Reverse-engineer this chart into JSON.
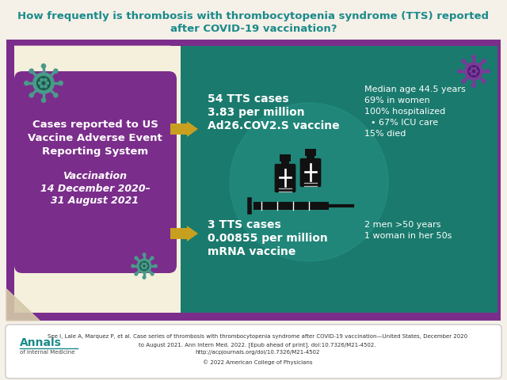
{
  "title_line1": "How frequently is thrombosis with thrombocytopenia syndrome (TTS) reported",
  "title_line2": "after COVID-19 vaccination?",
  "title_color": "#1a8a8a",
  "bg_color": "#f5f0e8",
  "purple_frame_color": "#7b2d8b",
  "cream_inner_color": "#f5f0dc",
  "teal_box_color": "#1a7a6e",
  "left_box_purple_color": "#7b2d8b",
  "arrow_color": "#c8a020",
  "left_text_line1": "Cases reported to US",
  "left_text_line2": "Vaccine Adverse Event",
  "left_text_line3": "Reporting System",
  "left_text_line4": "Vaccination",
  "left_text_line5": "14 December 2020–",
  "left_text_line6": "31 August 2021",
  "footer_text1": "See I, Lale A, Marquez P, et al. Case series of thrombosis with thrombocytopenia syndrome after COVID-19 vaccination—United States, December 2020",
  "footer_text2": "to August 2021. Ann Intern Med. 2022. [Epub ahead of print]. doi:10.7326/M21-4502.",
  "footer_text3": "http://acpjournals.org/doi/10.7326/M21-4502",
  "footer_text4": "© 2022 American College of Physicians",
  "annals_color": "#1a8a8a",
  "virus_color1": "#4a9a8a",
  "virus_color2": "#7a3a9a"
}
